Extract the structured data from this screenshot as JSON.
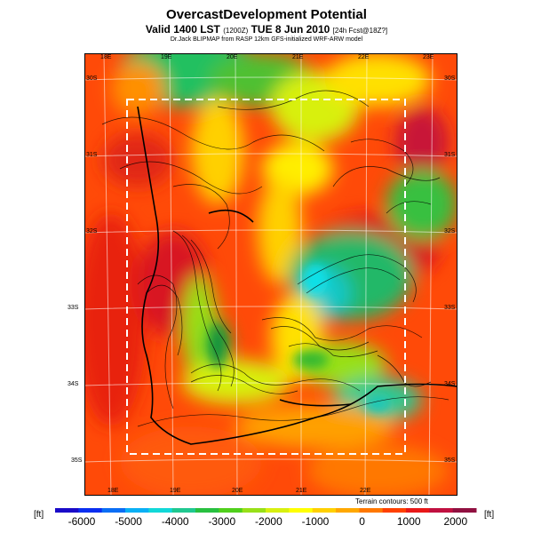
{
  "header": {
    "title": "OvercastDevelopment Potential",
    "subtitle_main": "Valid 1400 LST",
    "subtitle_paren": "(1200Z)",
    "subtitle_date": "TUE 8 Jun 2010",
    "subtitle_fcst": "[24h Fcst@18Z?]",
    "credit": "Dr.Jack BLIPMAP from RASP 12km GFS-initialized WRF-ARW model"
  },
  "map": {
    "lon_labels_top": [
      "18E",
      "19E",
      "20E",
      "21E",
      "22E",
      "23E"
    ],
    "lon_labels_bottom": [
      "18E",
      "19E",
      "20E",
      "21E",
      "22E"
    ],
    "lat_labels_right": [
      "30S",
      "31S",
      "32S",
      "33S",
      "34S",
      "35S"
    ],
    "lat_labels_left": [
      "30S",
      "31S",
      "32S",
      "33S",
      "34S",
      "35S"
    ],
    "terrain_note": "Terrain contours: 500 ft"
  },
  "colorbar": {
    "unit_left": "[ft]",
    "unit_right": "[ft]",
    "tick_labels": [
      "-6000",
      "-5000",
      "-4000",
      "-3000",
      "-2000",
      "-1000",
      "0",
      "1000",
      "2000"
    ],
    "colors": [
      "#1a0ac8",
      "#0a2ef0",
      "#0a6ef5",
      "#0ab0f5",
      "#12d8d8",
      "#20c890",
      "#28c040",
      "#50d01c",
      "#98e018",
      "#d8f010",
      "#ffff00",
      "#ffd000",
      "#ffa800",
      "#ff7800",
      "#ff4000",
      "#e81818",
      "#c01040",
      "#901040"
    ]
  }
}
